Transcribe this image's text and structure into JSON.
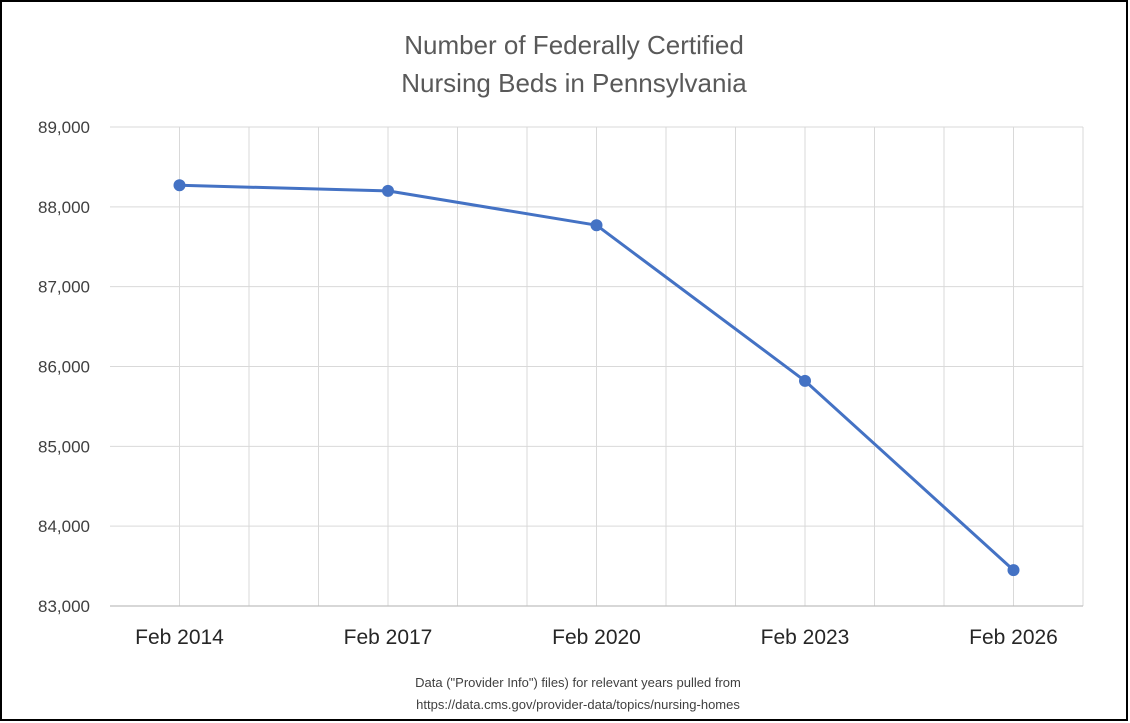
{
  "chart_data": {
    "type": "line",
    "title": [
      "Number of Federally Certified",
      "Nursing Beds in Pennsylvania"
    ],
    "x": [
      "Feb 2014",
      "Feb 2017",
      "Feb 2020",
      "Feb 2023",
      "Feb 2026"
    ],
    "series": [
      {
        "points": [
          {
            "date": "2014-02",
            "value": 88270
          },
          {
            "date": "2017-02",
            "value": 88200
          },
          {
            "date": "2020-02",
            "value": 87770
          },
          {
            "date": "2023-02",
            "value": 85820
          },
          {
            "date": "2026-02",
            "value": 83450
          }
        ]
      }
    ],
    "y_ticks": [
      "83,000",
      "84,000",
      "85,000",
      "86,000",
      "87,000",
      "88,000",
      "89,000"
    ],
    "ylim": [
      83000,
      89000
    ],
    "xlim": [
      "2013-02",
      "2027-02"
    ],
    "grid": true,
    "line_color": "#4472C4",
    "source_note": [
      "Data (\"Provider Info\") files) for relevant years pulled from",
      "https://data.cms.gov/provider-data/topics/nursing-homes"
    ]
  }
}
